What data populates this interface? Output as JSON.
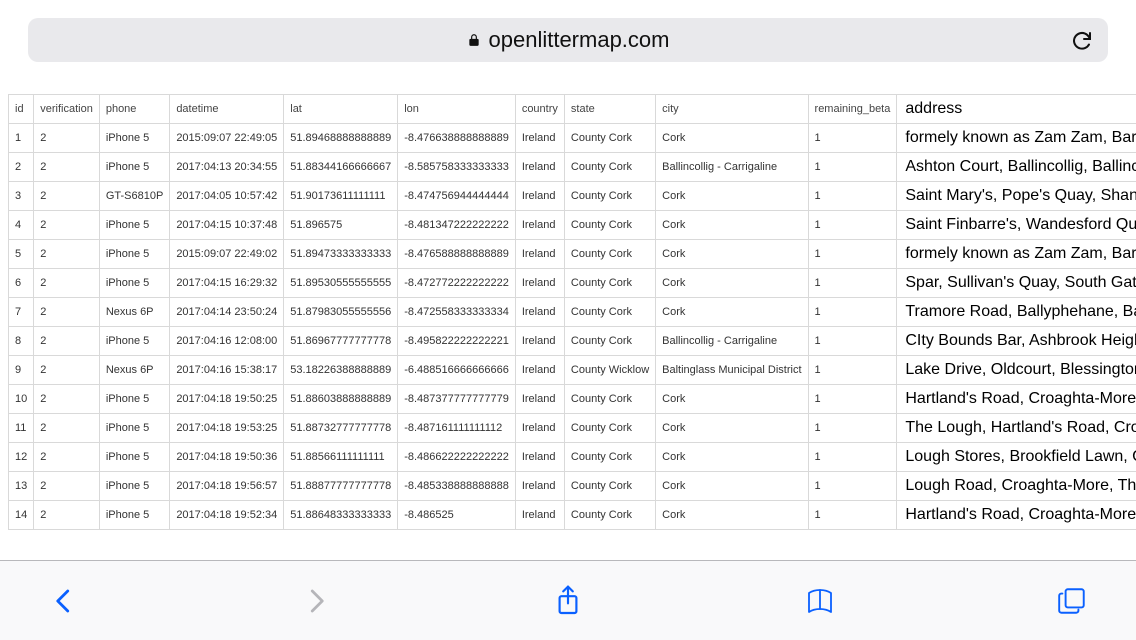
{
  "browser": {
    "domain": "openlittermap.com",
    "icon_color_active": "#0a60ff",
    "icon_color_disabled": "#b5b5b9",
    "url_bar_bg": "#e9e9ec",
    "toolbar_bg": "#f9f9fa",
    "toolbar_border": "#b8b8bb"
  },
  "table": {
    "border_color": "#d9d9d9",
    "header_fontsize": 11,
    "data_fontsize": 11,
    "address_fontsize": 16,
    "columns": [
      "id",
      "verification",
      "phone",
      "datetime",
      "lat",
      "lon",
      "country",
      "state",
      "city",
      "remaining_beta",
      "address"
    ],
    "rows": [
      {
        "id": "1",
        "verification": "2",
        "phone": "iPhone 5",
        "datetime": "2015:09:07 22:49:05",
        "lat": "51.89468888888889",
        "lon": "-8.476638888888889",
        "country": "Ireland",
        "state": "County Cork",
        "city": "Cork",
        "remaining_beta": "1",
        "address": "formely known as Zam Zam, Barra"
      },
      {
        "id": "2",
        "verification": "2",
        "phone": "iPhone 5",
        "datetime": "2017:04:13 20:34:55",
        "lat": "51.88344166666667",
        "lon": "-8.585758333333333",
        "country": "Ireland",
        "state": "County Cork",
        "city": "Ballincollig - Carrigaline",
        "remaining_beta": "1",
        "address": "Ashton Court, Ballincollig, Ballincoll"
      },
      {
        "id": "3",
        "verification": "2",
        "phone": "GT-S6810P",
        "datetime": "2017:04:05 10:57:42",
        "lat": "51.90173611111111",
        "lon": "-8.474756944444444",
        "country": "Ireland",
        "state": "County Cork",
        "city": "Cork",
        "remaining_beta": "1",
        "address": "Saint Mary's, Pope's Quay, Shando"
      },
      {
        "id": "4",
        "verification": "2",
        "phone": "iPhone 5",
        "datetime": "2017:04:15 10:37:48",
        "lat": "51.896575",
        "lon": "-8.481347222222222",
        "country": "Ireland",
        "state": "County Cork",
        "city": "Cork",
        "remaining_beta": "1",
        "address": "Saint Finbarre's, Wandesford Quay,"
      },
      {
        "id": "5",
        "verification": "2",
        "phone": "iPhone 5",
        "datetime": "2015:09:07 22:49:02",
        "lat": "51.89473333333333",
        "lon": "-8.476588888888889",
        "country": "Ireland",
        "state": "County Cork",
        "city": "Cork",
        "remaining_beta": "1",
        "address": "formely known as Zam Zam, Barra"
      },
      {
        "id": "6",
        "verification": "2",
        "phone": "iPhone 5",
        "datetime": "2017:04:15 16:29:32",
        "lat": "51.89530555555555",
        "lon": "-8.472772222222222",
        "country": "Ireland",
        "state": "County Cork",
        "city": "Cork",
        "remaining_beta": "1",
        "address": "Spar, Sullivan's Quay, South Gate A"
      },
      {
        "id": "7",
        "verification": "2",
        "phone": "Nexus 6P",
        "datetime": "2017:04:14 23:50:24",
        "lat": "51.87983055555556",
        "lon": "-8.472558333333334",
        "country": "Ireland",
        "state": "County Cork",
        "city": "Cork",
        "remaining_beta": "1",
        "address": "Tramore Road, Ballyphehane, Bally"
      },
      {
        "id": "8",
        "verification": "2",
        "phone": "iPhone 5",
        "datetime": "2017:04:16 12:08:00",
        "lat": "51.86967777777778",
        "lon": "-8.495822222222221",
        "country": "Ireland",
        "state": "County Cork",
        "city": "Ballincollig - Carrigaline",
        "remaining_beta": "1",
        "address": "CIty Bounds Bar, Ashbrook Heights"
      },
      {
        "id": "9",
        "verification": "2",
        "phone": "Nexus 6P",
        "datetime": "2017:04:16 15:38:17",
        "lat": "53.18226388888889",
        "lon": "-6.488516666666666",
        "country": "Ireland",
        "state": "County Wicklow",
        "city": "Baltinglass Municipal District",
        "remaining_beta": "1",
        "address": "Lake Drive, Oldcourt, Blessington,"
      },
      {
        "id": "10",
        "verification": "2",
        "phone": "iPhone 5",
        "datetime": "2017:04:18 19:50:25",
        "lat": "51.88603888888889",
        "lon": "-8.487377777777779",
        "country": "Ireland",
        "state": "County Cork",
        "city": "Cork",
        "remaining_beta": "1",
        "address": "Hartland's Road, Croaghta-More, C"
      },
      {
        "id": "11",
        "verification": "2",
        "phone": "iPhone 5",
        "datetime": "2017:04:18 19:53:25",
        "lat": "51.88732777777778",
        "lon": "-8.487161111111112",
        "country": "Ireland",
        "state": "County Cork",
        "city": "Cork",
        "remaining_beta": "1",
        "address": "The Lough, Hartland's Road, Croag"
      },
      {
        "id": "12",
        "verification": "2",
        "phone": "iPhone 5",
        "datetime": "2017:04:18 19:50:36",
        "lat": "51.88566111111111",
        "lon": "-8.486622222222222",
        "country": "Ireland",
        "state": "County Cork",
        "city": "Cork",
        "remaining_beta": "1",
        "address": "Lough Stores, Brookfield Lawn, Cro"
      },
      {
        "id": "13",
        "verification": "2",
        "phone": "iPhone 5",
        "datetime": "2017:04:18 19:56:57",
        "lat": "51.88877777777778",
        "lon": "-8.485338888888888",
        "country": "Ireland",
        "state": "County Cork",
        "city": "Cork",
        "remaining_beta": "1",
        "address": "Lough Road, Croaghta-More, The L"
      },
      {
        "id": "14",
        "verification": "2",
        "phone": "iPhone 5",
        "datetime": "2017:04:18 19:52:34",
        "lat": "51.88648333333333",
        "lon": "-8.486525",
        "country": "Ireland",
        "state": "County Cork",
        "city": "Cork",
        "remaining_beta": "1",
        "address": "Hartland's Road, Croaghta-More, C"
      }
    ]
  }
}
